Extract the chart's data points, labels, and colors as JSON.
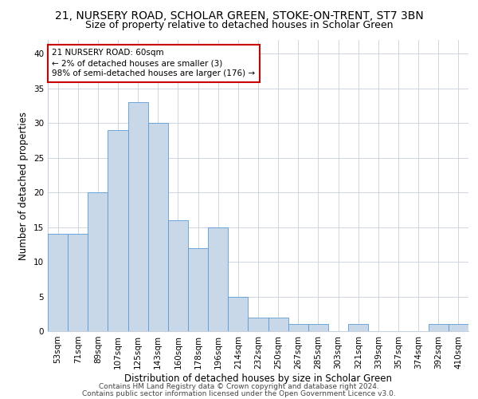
{
  "title": "21, NURSERY ROAD, SCHOLAR GREEN, STOKE-ON-TRENT, ST7 3BN",
  "subtitle": "Size of property relative to detached houses in Scholar Green",
  "xlabel": "Distribution of detached houses by size in Scholar Green",
  "ylabel": "Number of detached properties",
  "bar_color": "#c8d8e8",
  "bar_edge_color": "#5b9bd5",
  "categories": [
    "53sqm",
    "71sqm",
    "89sqm",
    "107sqm",
    "125sqm",
    "143sqm",
    "160sqm",
    "178sqm",
    "196sqm",
    "214sqm",
    "232sqm",
    "250sqm",
    "267sqm",
    "285sqm",
    "303sqm",
    "321sqm",
    "339sqm",
    "357sqm",
    "374sqm",
    "392sqm",
    "410sqm"
  ],
  "values": [
    14,
    14,
    20,
    29,
    33,
    30,
    16,
    12,
    15,
    5,
    2,
    2,
    1,
    1,
    0,
    1,
    0,
    0,
    0,
    1,
    1
  ],
  "ylim": [
    0,
    42
  ],
  "yticks": [
    0,
    5,
    10,
    15,
    20,
    25,
    30,
    35,
    40
  ],
  "annotation_line1": "21 NURSERY ROAD: 60sqm",
  "annotation_line2": "← 2% of detached houses are smaller (3)",
  "annotation_line3": "98% of semi-detached houses are larger (176) →",
  "annotation_box_color": "#ffffff",
  "annotation_box_edge_color": "#cc0000",
  "footnote1": "Contains HM Land Registry data © Crown copyright and database right 2024.",
  "footnote2": "Contains public sector information licensed under the Open Government Licence v3.0.",
  "bg_color": "#ffffff",
  "grid_color": "#c8d0dc",
  "title_fontsize": 10,
  "subtitle_fontsize": 9,
  "axis_label_fontsize": 8.5,
  "tick_fontsize": 7.5,
  "annotation_fontsize": 7.5,
  "footnote_fontsize": 6.5
}
